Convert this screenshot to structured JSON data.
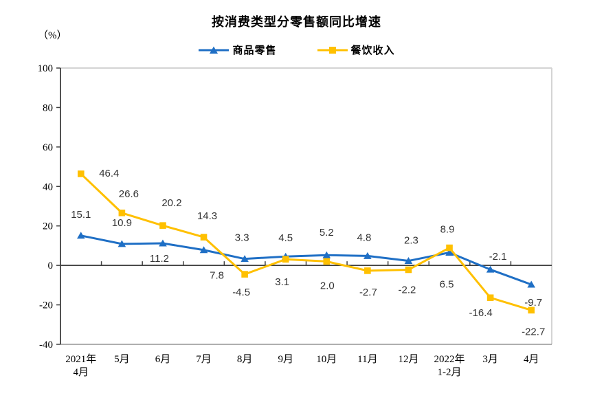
{
  "chart": {
    "title": "按消费类型分零售额同比增速",
    "unit_label": "（%）"
  },
  "chart_data": {
    "type": "line",
    "title": "按消费类型分零售额同比增速",
    "xlabel": "",
    "ylabel": "（%）",
    "ylim": [
      -40,
      100
    ],
    "yticks": [
      100,
      80,
      60,
      40,
      20,
      0,
      -20,
      -40
    ],
    "grid": false,
    "legend_position": "top-center",
    "axis_color": "#404040",
    "frame_color": "#d4d4d4",
    "categories": [
      "2021年\n4月",
      "5月",
      "6月",
      "7月",
      "8月",
      "9月",
      "10月",
      "11月",
      "12月",
      "2022年\n1-2月",
      "3月",
      "4月"
    ],
    "series": [
      {
        "name": "商品零售",
        "color": "#1F6FC5",
        "marker": "triangle",
        "values": [
          15.1,
          10.9,
          11.2,
          7.8,
          3.3,
          4.5,
          5.2,
          4.8,
          2.3,
          6.5,
          -2.1,
          -9.7
        ]
      },
      {
        "name": "餐饮收入",
        "color": "#FFC000",
        "marker": "square",
        "values": [
          46.4,
          26.6,
          20.2,
          14.3,
          -4.5,
          3.1,
          2.0,
          -2.7,
          -2.2,
          8.9,
          -16.4,
          -22.7
        ]
      }
    ]
  }
}
